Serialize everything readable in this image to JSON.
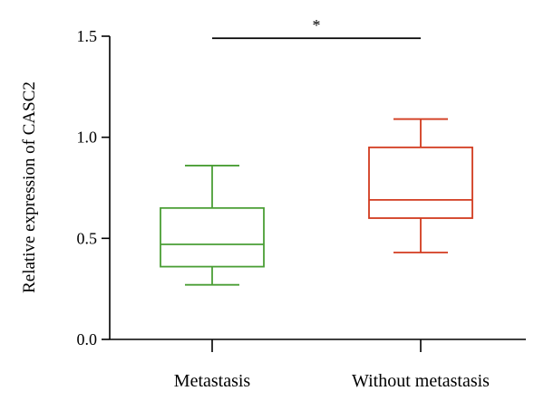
{
  "chart_data": {
    "type": "box",
    "ylabel": "Relative expression of CASC2",
    "xlabel": "",
    "ylim": [
      0,
      1.5
    ],
    "yticks": [
      "0.0",
      "0.5",
      "1.0",
      "1.5"
    ],
    "yticks_values": [
      0,
      0.5,
      1.0,
      1.5
    ],
    "categories": [
      "Metastasis",
      "Without metastasis"
    ],
    "series": [
      {
        "category": "Metastasis",
        "color": "#4a9e35",
        "min": 0.27,
        "q1": 0.36,
        "median": 0.47,
        "q3": 0.65,
        "max": 0.86
      },
      {
        "category": "Without metastasis",
        "color": "#d23a1e",
        "min": 0.43,
        "q1": 0.6,
        "median": 0.69,
        "q3": 0.95,
        "max": 1.09
      }
    ],
    "significance": {
      "label": "*",
      "y": 1.49,
      "between": [
        "Metastasis",
        "Without metastasis"
      ]
    },
    "grid": false,
    "legend": "none"
  }
}
